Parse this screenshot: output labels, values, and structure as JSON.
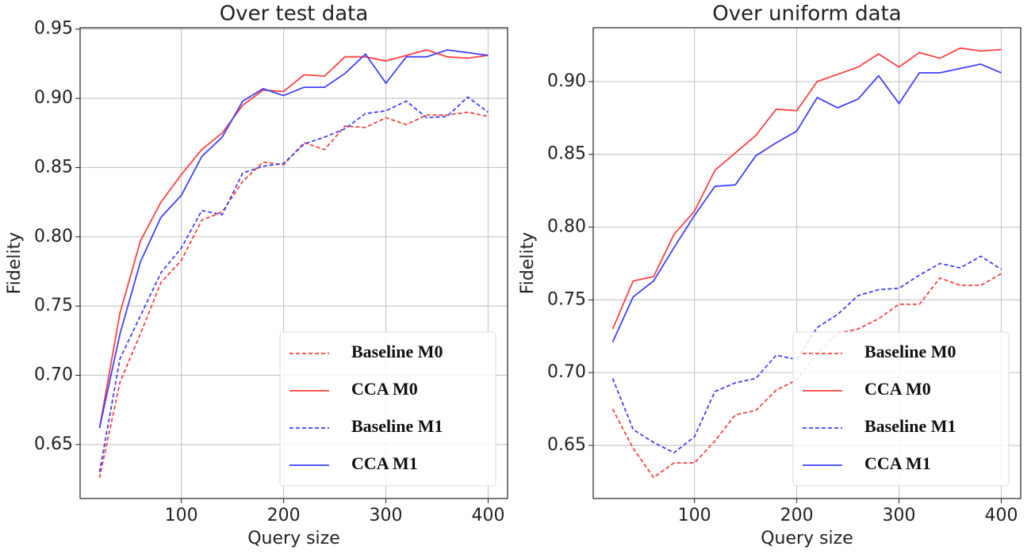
{
  "chart_data": [
    {
      "type": "line",
      "title": "Over test data",
      "xlabel": "Query size",
      "ylabel": "Fidelity",
      "x": [
        20,
        40,
        60,
        80,
        100,
        120,
        140,
        160,
        180,
        200,
        220,
        240,
        260,
        280,
        300,
        320,
        340,
        360,
        380,
        400
      ],
      "xlim": [
        1,
        419
      ],
      "xticks": [
        100,
        200,
        300,
        400
      ],
      "ylim": [
        0.611,
        0.951
      ],
      "yticks": [
        0.65,
        {
          "value": 0.7,
          "label": "0.70"
        },
        0.75,
        {
          "value": 0.8,
          "label": "0.80"
        },
        0.85,
        {
          "value": 0.9,
          "label": "0.90"
        },
        0.95
      ],
      "grid": true,
      "legend": "lower right",
      "series": [
        {
          "name": "Baseline M0",
          "color": "#ff4040",
          "linestyle": "dashed",
          "values": [
            0.626,
            0.695,
            0.73,
            0.767,
            0.783,
            0.812,
            0.818,
            0.84,
            0.854,
            0.852,
            0.868,
            0.863,
            0.88,
            0.879,
            0.886,
            0.881,
            0.888,
            0.888,
            0.89,
            0.887
          ]
        },
        {
          "name": "CCA M0",
          "color": "#ff4040",
          "linestyle": "solid",
          "values": [
            0.662,
            0.745,
            0.797,
            0.825,
            0.845,
            0.863,
            0.875,
            0.895,
            0.906,
            0.905,
            0.917,
            0.916,
            0.93,
            0.93,
            0.927,
            0.931,
            0.935,
            0.93,
            0.929,
            0.931
          ]
        },
        {
          "name": "Baseline M1",
          "color": "#4040ff",
          "linestyle": "dashed",
          "values": [
            0.63,
            0.712,
            0.743,
            0.774,
            0.792,
            0.819,
            0.816,
            0.846,
            0.851,
            0.853,
            0.867,
            0.872,
            0.878,
            0.889,
            0.891,
            0.898,
            0.886,
            0.887,
            0.901,
            0.89
          ]
        },
        {
          "name": "CCA M1",
          "color": "#4040ff",
          "linestyle": "solid",
          "values": [
            0.662,
            0.73,
            0.782,
            0.814,
            0.83,
            0.858,
            0.872,
            0.898,
            0.907,
            0.902,
            0.908,
            0.908,
            0.918,
            0.932,
            0.911,
            0.93,
            0.93,
            0.935,
            0.933,
            0.931
          ]
        }
      ]
    },
    {
      "type": "line",
      "title": "Over uniform data",
      "xlabel": "Query size",
      "ylabel": "Fidelity",
      "x": [
        20,
        40,
        60,
        80,
        100,
        120,
        140,
        160,
        180,
        200,
        220,
        240,
        260,
        280,
        300,
        320,
        340,
        360,
        380,
        400
      ],
      "xlim": [
        1,
        419
      ],
      "xticks": [
        100,
        200,
        300,
        400
      ],
      "ylim": [
        0.6135,
        0.937
      ],
      "yticks": [
        0.65,
        {
          "value": 0.7,
          "label": "0.70"
        },
        0.75,
        {
          "value": 0.8,
          "label": "0.80"
        },
        0.85,
        {
          "value": 0.9,
          "label": "0.90"
        }
      ],
      "grid": true,
      "legend": "lower right",
      "series": [
        {
          "name": "Baseline M0",
          "color": "#ff4040",
          "linestyle": "dashed",
          "values": [
            0.675,
            0.648,
            0.628,
            0.638,
            0.638,
            0.653,
            0.671,
            0.674,
            0.688,
            0.695,
            0.713,
            0.727,
            0.73,
            0.737,
            0.747,
            0.747,
            0.765,
            0.76,
            0.76,
            0.768
          ]
        },
        {
          "name": "CCA M0",
          "color": "#ff4040",
          "linestyle": "solid",
          "values": [
            0.73,
            0.763,
            0.766,
            0.795,
            0.811,
            0.839,
            0.851,
            0.863,
            0.881,
            0.88,
            0.9,
            0.905,
            0.91,
            0.919,
            0.91,
            0.92,
            0.916,
            0.923,
            0.921,
            0.922
          ]
        },
        {
          "name": "Baseline M1",
          "color": "#4040ff",
          "linestyle": "dashed",
          "values": [
            0.696,
            0.661,
            0.652,
            0.645,
            0.656,
            0.687,
            0.693,
            0.696,
            0.712,
            0.709,
            0.731,
            0.74,
            0.753,
            0.757,
            0.758,
            0.767,
            0.775,
            0.772,
            0.78,
            0.771
          ]
        },
        {
          "name": "CCA M1",
          "color": "#4040ff",
          "linestyle": "solid",
          "values": [
            0.721,
            0.752,
            0.763,
            0.786,
            0.808,
            0.828,
            0.829,
            0.849,
            0.858,
            0.866,
            0.889,
            0.882,
            0.888,
            0.904,
            0.885,
            0.906,
            0.906,
            0.909,
            0.912,
            0.906
          ]
        }
      ]
    }
  ]
}
